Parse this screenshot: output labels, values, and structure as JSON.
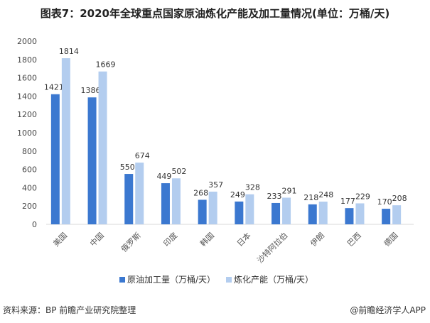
{
  "title": "图表7：2020年全球重点国家原油炼化产能及加工量情况(单位：万桶/天)",
  "footer": {
    "source": "资料来源：BP 前瞻产业研究院整理",
    "credit": "@前瞻经济学人APP"
  },
  "colors": {
    "series1": "#3b78d0",
    "series2": "#b3cdef"
  },
  "chart_data": {
    "type": "bar",
    "title": "图表7：2020年全球重点国家原油炼化产能及加工量情况(单位：万桶/天)",
    "categories": [
      "美国",
      "中国",
      "俄罗斯",
      "印度",
      "韩国",
      "日本",
      "沙特阿拉伯",
      "伊朗",
      "巴西",
      "德国"
    ],
    "series": [
      {
        "name": "原油加工量（万桶/天）",
        "values": [
          1421,
          1386,
          550,
          449,
          268,
          249,
          233,
          218,
          177,
          170
        ]
      },
      {
        "name": "炼化产能（万桶/天）",
        "values": [
          1814,
          1669,
          674,
          502,
          357,
          328,
          291,
          248,
          229,
          208
        ]
      }
    ],
    "ylim": [
      0,
      2000
    ],
    "yticks": [
      0,
      200,
      400,
      600,
      800,
      1000,
      1200,
      1400,
      1600,
      1800,
      2000
    ],
    "grid": false,
    "legend": "bottom"
  }
}
